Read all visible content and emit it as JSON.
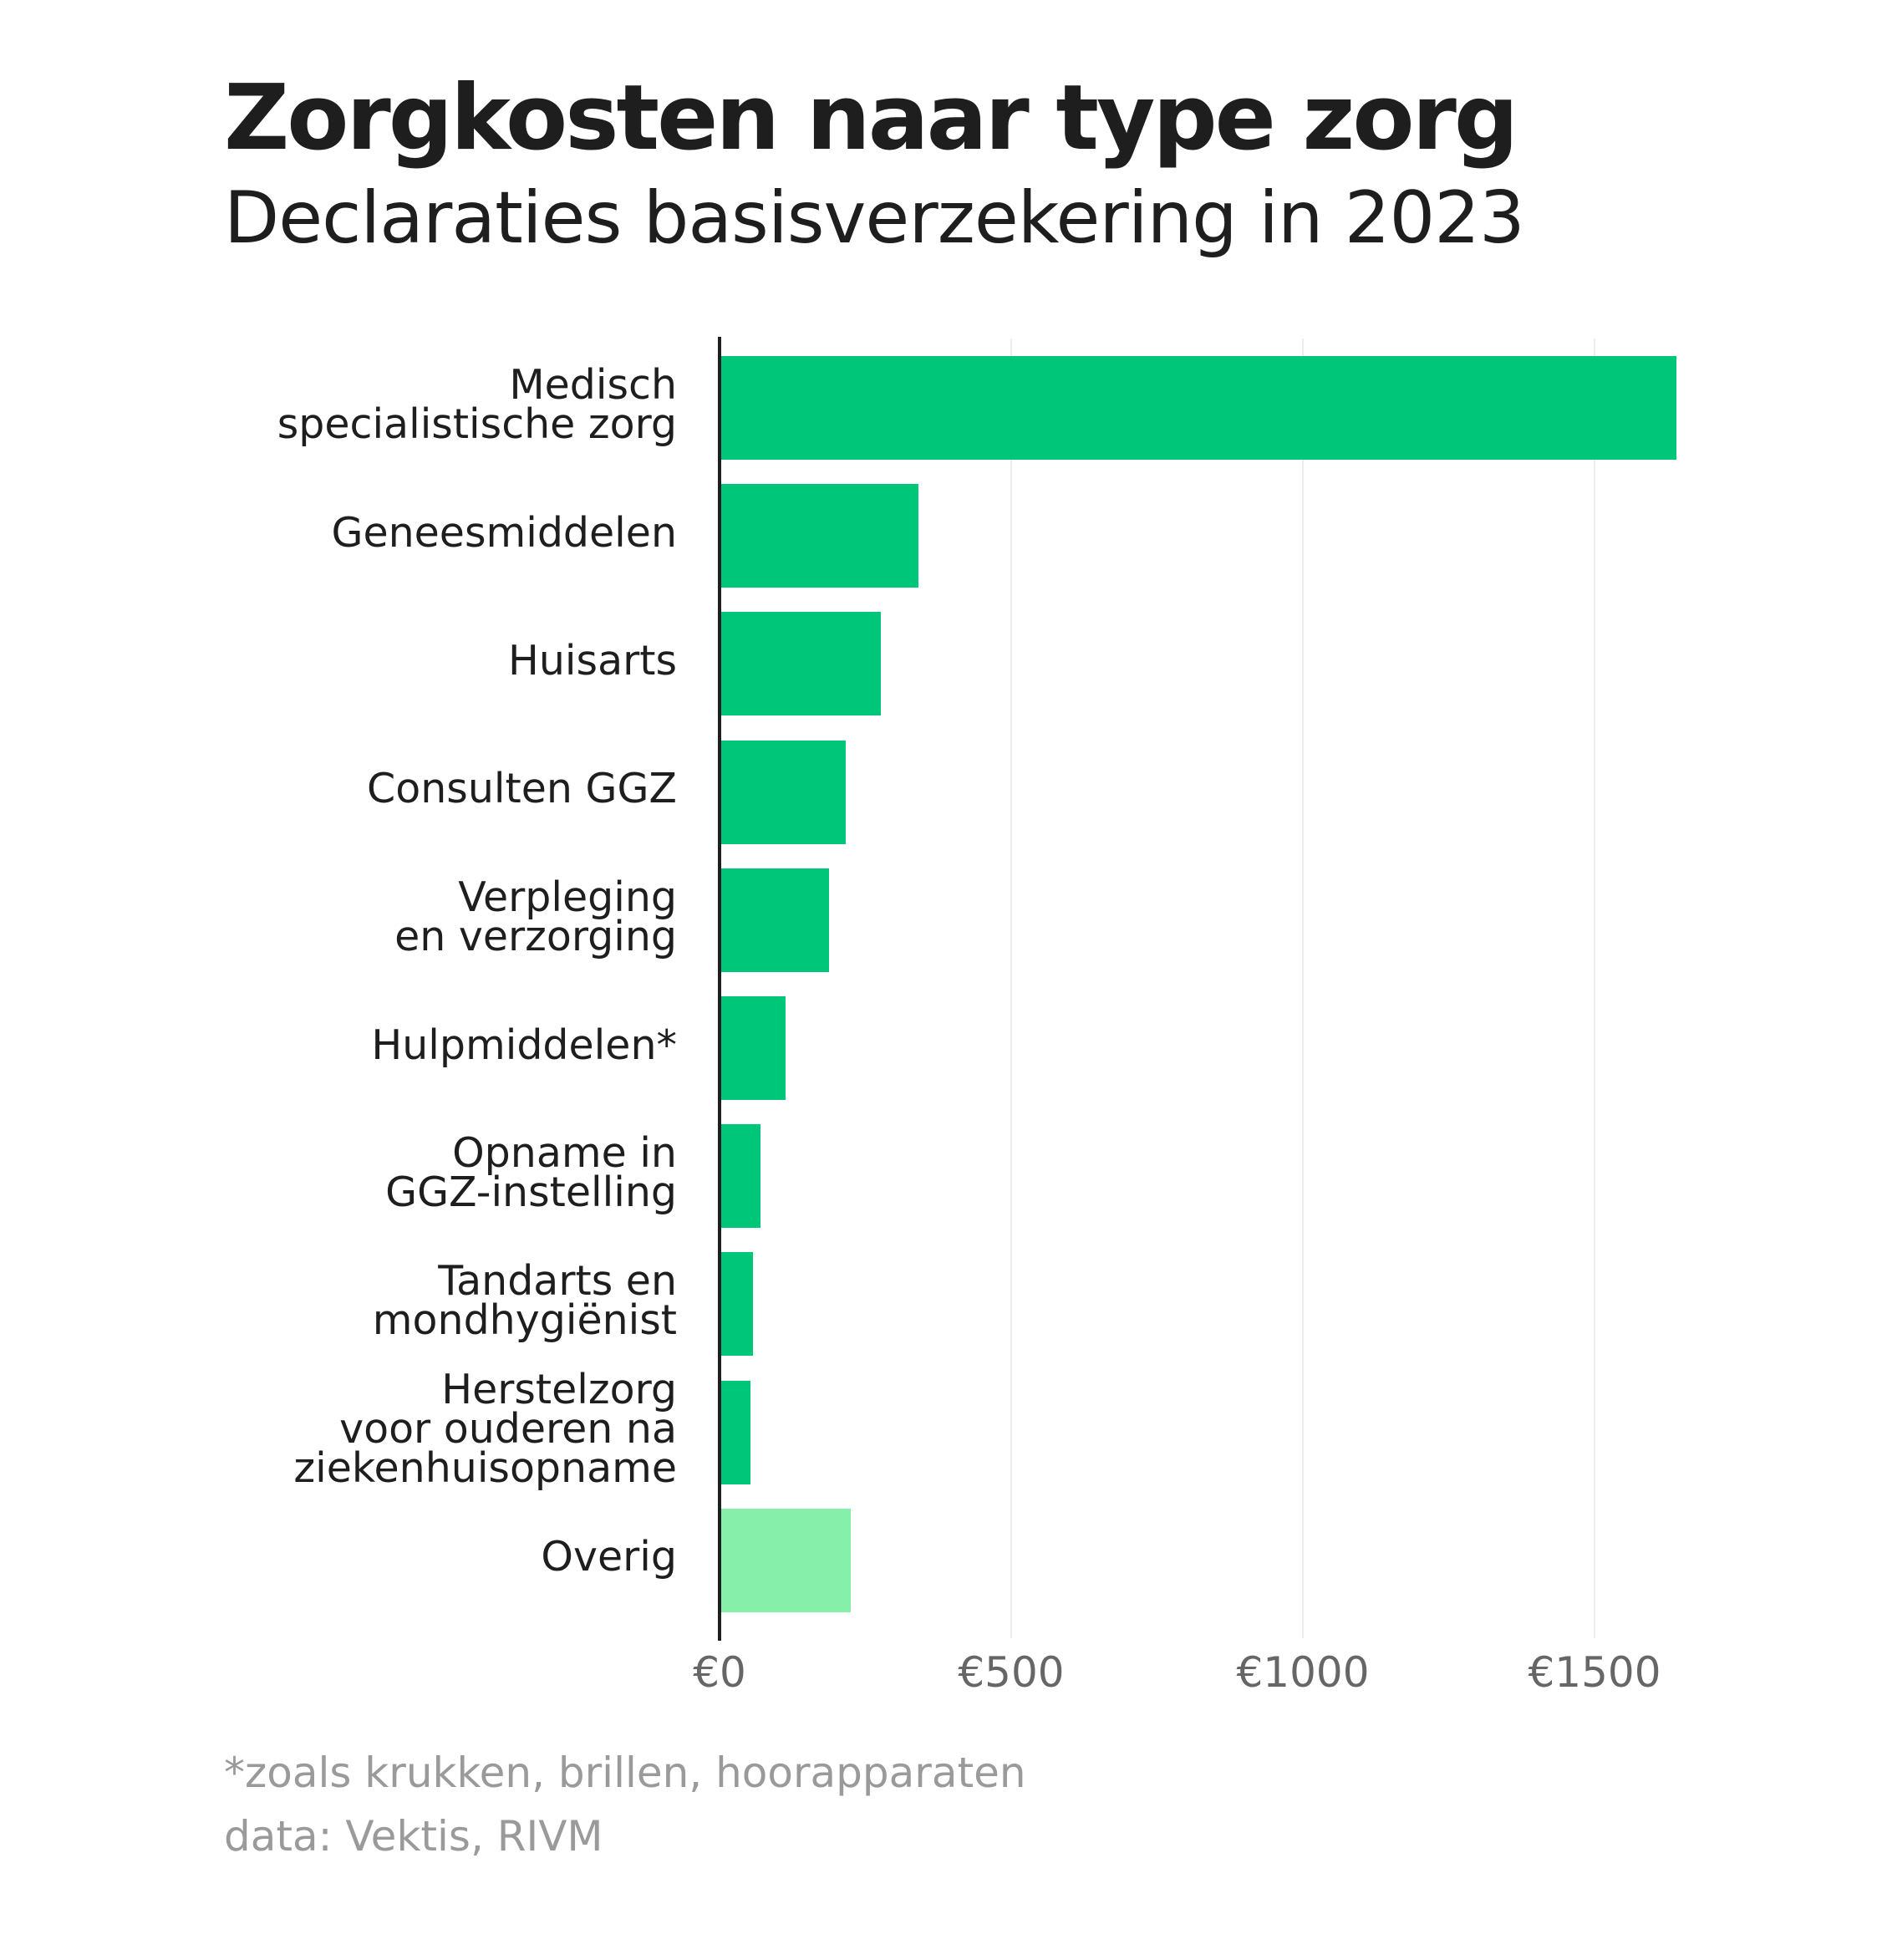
{
  "header": {
    "title": "Zorgkosten naar type zorg",
    "subtitle": "Declaraties basisverzekering in 2023"
  },
  "footer": {
    "note": "*zoals krukken, brillen, hoorapparaten",
    "source": "data: Vektis, RIVM"
  },
  "colors": {
    "bar": "#00c67a",
    "bar_other": "#86f0aa",
    "axis": "#1e1e1e",
    "grid": "#ececec",
    "tick_text": "#666666",
    "note_text": "#9a9a9a"
  },
  "chart_data": {
    "type": "bar",
    "orientation": "horizontal",
    "title": "Zorgkosten naar type zorg",
    "subtitle": "Declaraties basisverzekering in 2023",
    "xlabel": "",
    "ylabel": "",
    "unit": "€ per verzekerde (approx.)",
    "categories": [
      "Medisch specialistische zorg",
      "Geneesmiddelen",
      "Huisarts",
      "Consulten GGZ",
      "Verpleging en verzorging",
      "Hulpmiddelen*",
      "Opname in GGZ-instelling",
      "Tandarts en mondhygiënist",
      "Herstelzorg voor ouderen na ziekenhuisopname",
      "Overig"
    ],
    "display_labels": [
      "Medisch\nspecialistische zorg",
      "Geneesmiddelen",
      "Huisarts",
      "Consulten GGZ",
      "Verpleging\nen verzorging",
      "Hulpmiddelen*",
      "Opname in\nGGZ-instelling",
      "Tandarts en\nmondhygiënist",
      "Herstelzorg\nvoor ouderen na\nziekenhuisopname",
      "Overig"
    ],
    "values": [
      1637,
      338,
      273,
      213,
      185,
      111,
      67,
      54,
      50,
      222
    ],
    "highlight": [
      "main",
      "main",
      "main",
      "main",
      "main",
      "main",
      "main",
      "main",
      "main",
      "other"
    ],
    "xlim": [
      0,
      1700
    ],
    "xticks": [
      0,
      500,
      1000,
      1500
    ],
    "xtick_labels": [
      "€0",
      "€500",
      "€1000",
      "€1500"
    ],
    "grid": true,
    "legend": null,
    "annotations": [
      "*zoals krukken, brillen, hoorapparaten",
      "data: Vektis, RIVM"
    ]
  }
}
